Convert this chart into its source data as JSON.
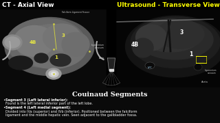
{
  "title_left": "CT - Axial View",
  "title_right": "Ultrasound - Transverse View",
  "section_title": "Couinaud Segments",
  "bullet1_bold": "Segment 3 (Left lateral inferior):",
  "bullet1_text": "Found is the left lateral inferior part of the left lobe.",
  "bullet2_bold": "Segment 4 (Left medial segment):",
  "bullet2_line1": "Divided into IVa (superior) and IVb (inferior). Positioned between the falciform",
  "bullet2_line2": "ligament and the middle hepatic vein. Seen adjacent to the gallbladder fossa.",
  "bg_color": "#000000",
  "figsize": [
    3.2,
    1.8
  ],
  "dpi": 100
}
